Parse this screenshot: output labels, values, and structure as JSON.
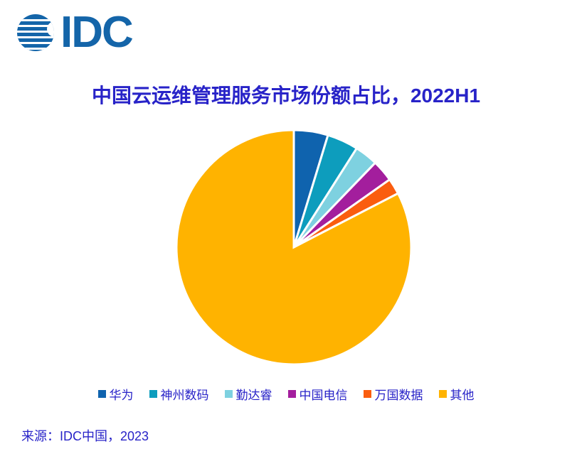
{
  "logo": {
    "text": "IDC"
  },
  "theme": {
    "background": "#FFFFFF",
    "text_blue": "#2823C8",
    "logo_blue": "#1465A9"
  },
  "chart_data": {
    "type": "pie",
    "title": "中国云运维管理服务市场份额占比，2022H1",
    "categories": [
      "华为",
      "神州数码",
      "勤达睿",
      "中国电信",
      "万国数据",
      "其他"
    ],
    "values": [
      4.7,
      4.3,
      3.2,
      3.0,
      2.2,
      82.6
    ],
    "values_are_estimates_from_slice_angles": true,
    "colors": [
      "#0F63AE",
      "#0D9DBD",
      "#7ED1E0",
      "#A31E9D",
      "#FA5D0F",
      "#FFB300"
    ],
    "start_angle_deg": 0,
    "direction": "clockwise",
    "slice_gap_color": "#FFFFFF",
    "legend_position": "bottom",
    "data_labels_visible": false
  },
  "footer": {
    "source": "来源：IDC中国，2023"
  }
}
